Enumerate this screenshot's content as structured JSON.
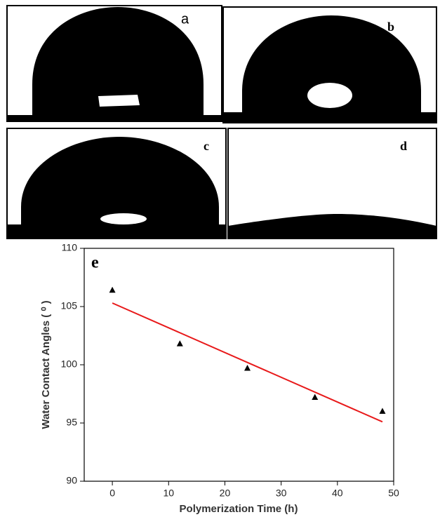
{
  "panels": [
    "a",
    "b",
    "c",
    "d"
  ],
  "chart_data": {
    "type": "scatter",
    "annotation": "e",
    "x_label": "Polymerization Time (h)",
    "y_label": "Water Contact Angles ( ⁰ )",
    "xlim": [
      -5,
      50
    ],
    "xticks": [
      0,
      10,
      20,
      30,
      40,
      50
    ],
    "ylim": [
      90,
      110
    ],
    "yticks": [
      90,
      95,
      100,
      105,
      110
    ],
    "series": [
      {
        "color": "#000000",
        "marker": "triangle",
        "x": [
          0,
          12,
          24,
          36,
          48
        ],
        "values": [
          106.4,
          101.8,
          99.7,
          97.2,
          96.0
        ]
      },
      {
        "color": "#e8191a",
        "marker": "line",
        "x": [
          0,
          48
        ],
        "values": [
          105.3,
          95.1
        ]
      }
    ]
  }
}
